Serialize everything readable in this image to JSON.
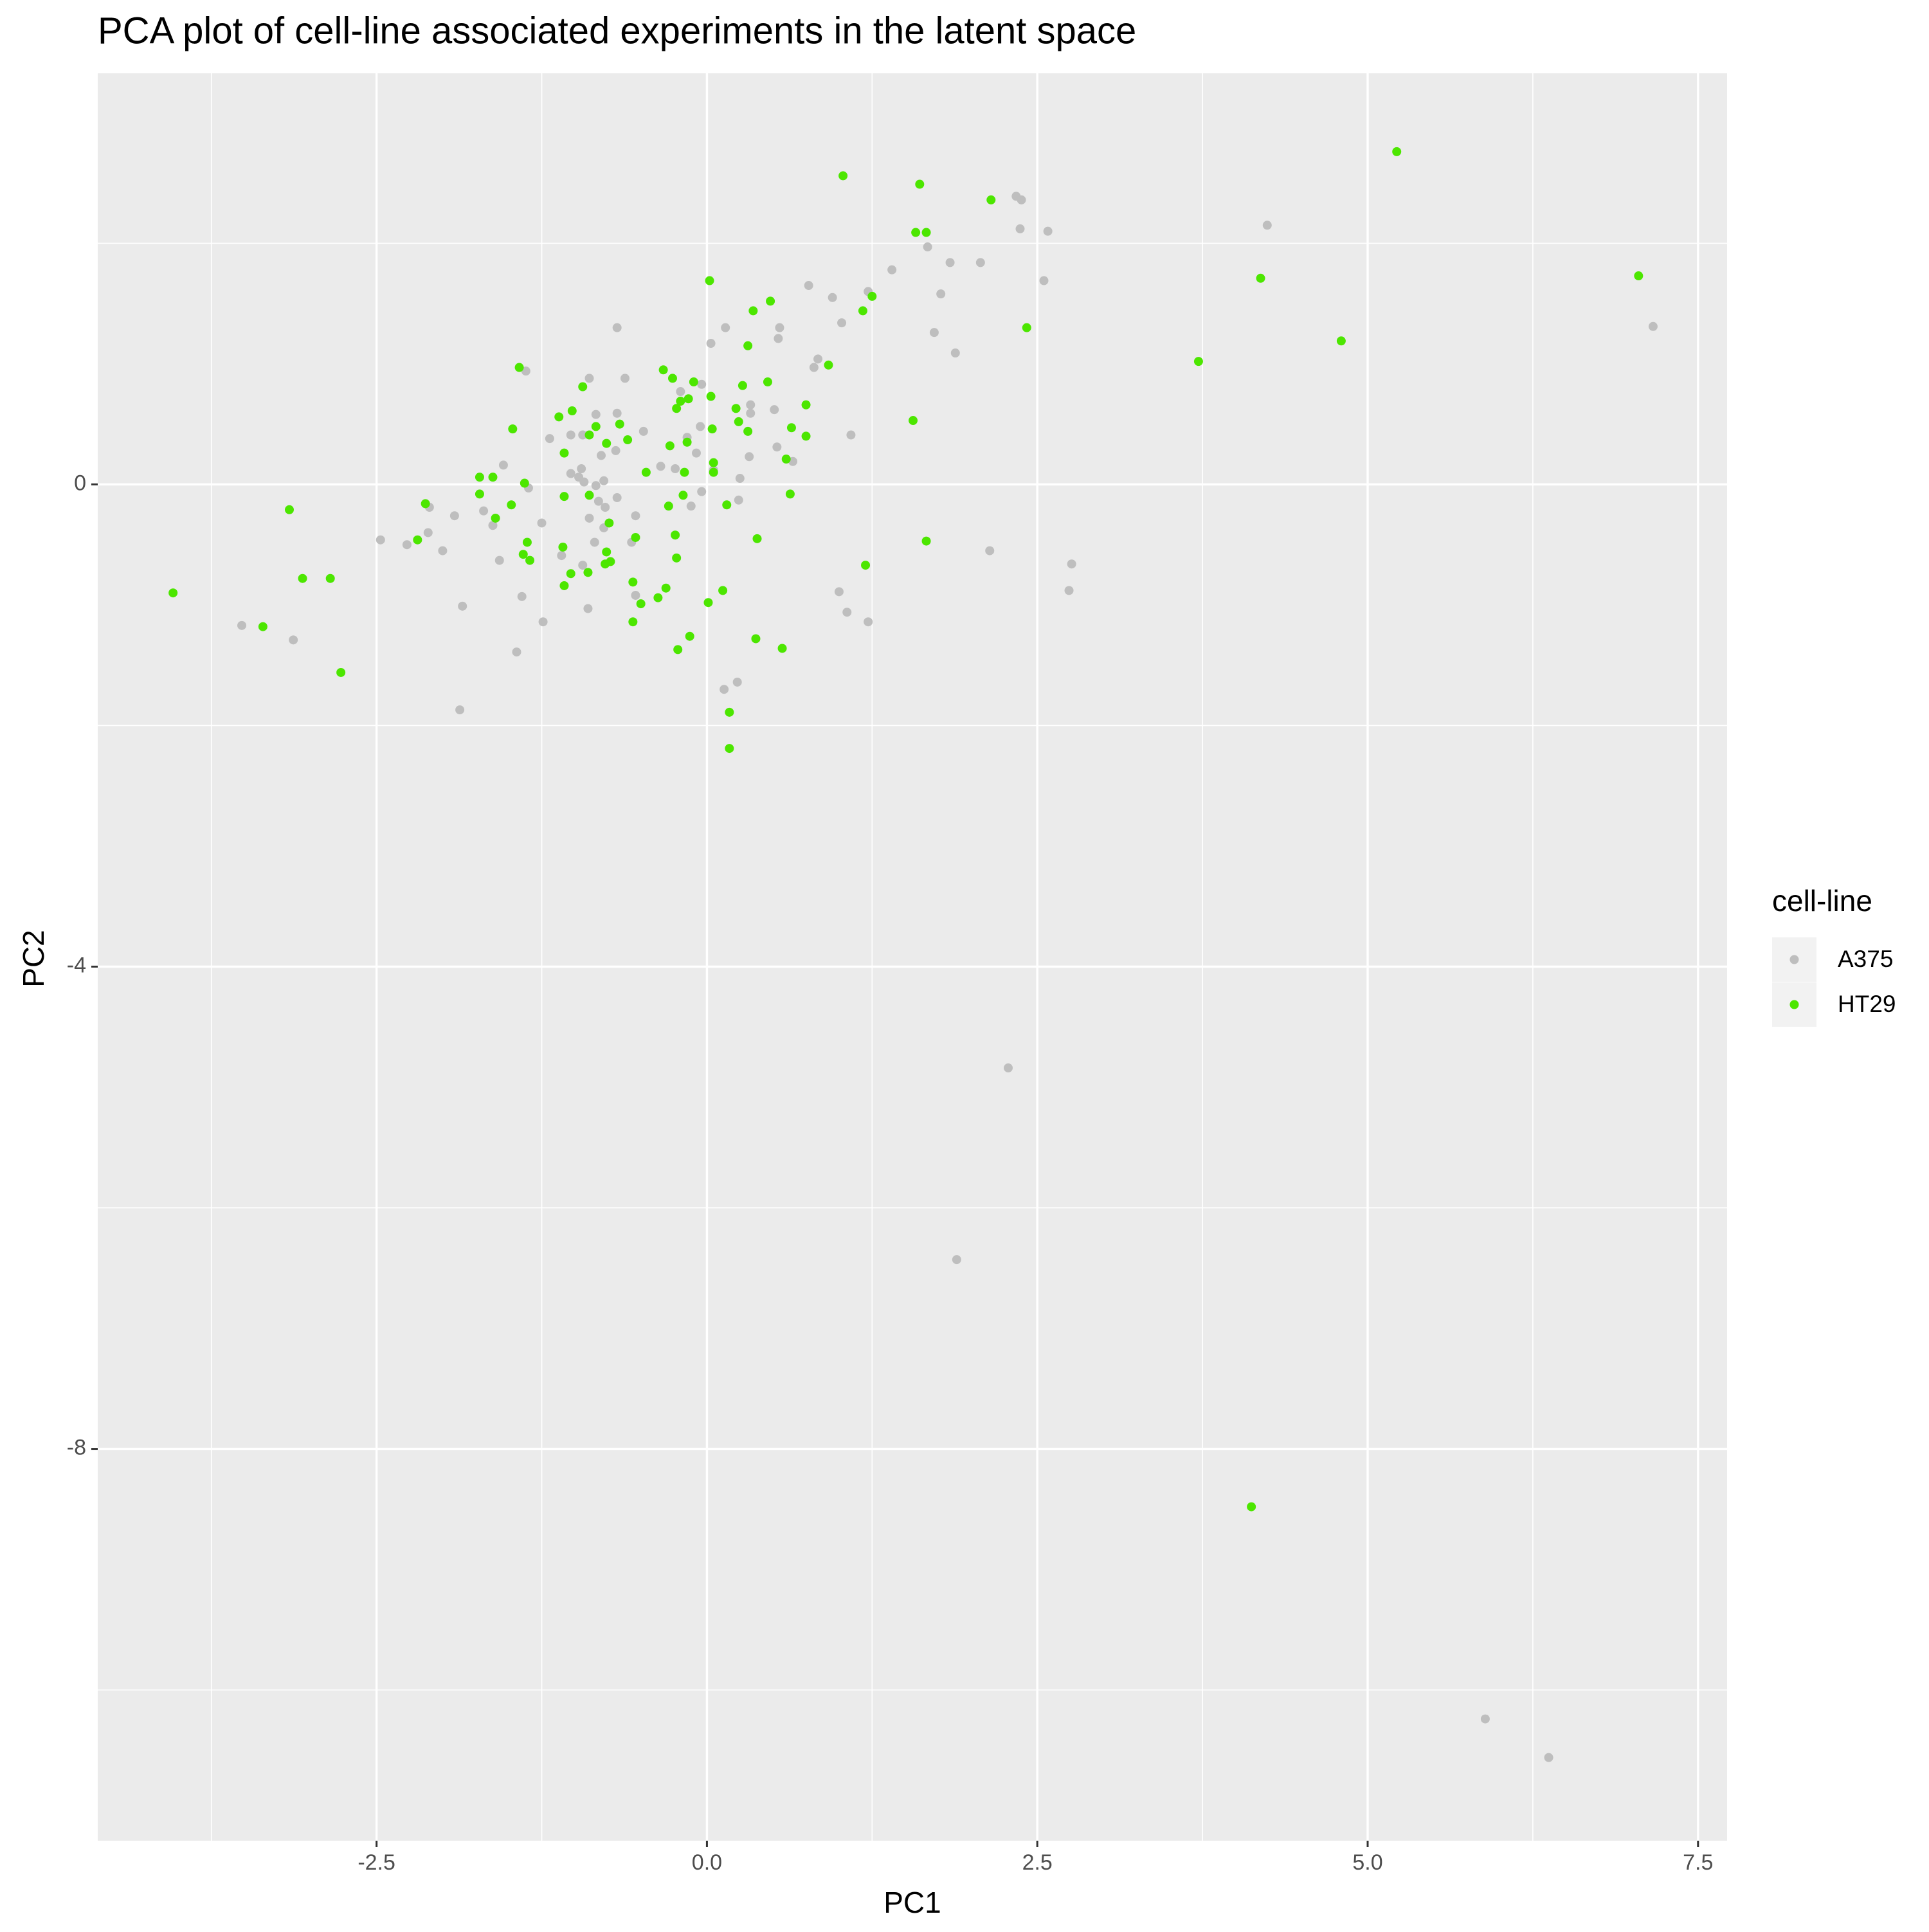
{
  "chart_data": {
    "type": "scatter",
    "title": "PCA plot of cell-line associated experiments in the latent space",
    "x_label": "PC1",
    "y_label": "PC2",
    "legend_title": "cell-line",
    "legend_position": "right",
    "grid": true,
    "panel_color": "#ebebeb",
    "xlim": [
      -4.61,
      7.72
    ],
    "ylim": [
      -11.25,
      3.41
    ],
    "xticks": [
      -2.5,
      {
        "value": 0,
        "label": "0.0"
      },
      2.5,
      {
        "value": 5,
        "label": "5.0"
      },
      7.5
    ],
    "yticks": [
      -8,
      -4,
      0
    ],
    "series": [
      {
        "name": "A375",
        "color": "#bebebe",
        "x": [
          2.34,
          2.38,
          2.37,
          2.58,
          4.24,
          1.67,
          1.84,
          2.07,
          1.4,
          2.55,
          0.77,
          1.77,
          0.95,
          1.22,
          1.02,
          7.16,
          -0.68,
          0.14,
          0.55,
          1.72,
          0.03,
          0.54,
          1.88,
          0.84,
          0.81,
          -1.37,
          -0.89,
          -0.62,
          -0.04,
          -0.2,
          -0.68,
          -0.84,
          0.33,
          0.51,
          0.33,
          -0.05,
          -0.48,
          -0.94,
          -1.03,
          -1.19,
          1.09,
          -0.15,
          0.53,
          -0.69,
          -0.8,
          0.32,
          0.65,
          -0.08,
          -0.95,
          -0.35,
          -0.24,
          -1.54,
          0.05,
          -1.03,
          -0.97,
          -0.78,
          -0.93,
          0.25,
          -0.84,
          -1.35,
          -0.04,
          -0.68,
          -0.82,
          -2.1,
          -1.69,
          -1.91,
          0.24,
          -0.12,
          -0.77,
          -0.89,
          -0.54,
          -1.25,
          -1.62,
          -0.78,
          -2.11,
          -2.47,
          -2.27,
          -2.0,
          -0.85,
          -0.57,
          2.14,
          -1.57,
          2.76,
          -0.94,
          -1.1,
          1.0,
          2.74,
          -1.4,
          -0.54,
          -1.85,
          -0.9,
          1.06,
          -3.52,
          1.22,
          -1.24,
          -3.13,
          -1.44,
          0.23,
          0.13,
          -1.87,
          2.28,
          1.89,
          5.89,
          6.37
        ],
        "values": [
          2.39,
          2.36,
          2.12,
          2.1,
          2.15,
          1.97,
          1.84,
          1.84,
          1.78,
          1.69,
          1.65,
          1.58,
          1.55,
          1.6,
          1.34,
          1.31,
          1.3,
          1.3,
          1.3,
          1.26,
          1.17,
          1.21,
          1.09,
          1.04,
          0.97,
          0.94,
          0.88,
          0.88,
          0.83,
          0.77,
          0.59,
          0.58,
          0.66,
          0.62,
          0.59,
          0.48,
          0.44,
          0.41,
          0.41,
          0.38,
          0.41,
          0.39,
          0.31,
          0.28,
          0.24,
          0.23,
          0.19,
          0.26,
          0.13,
          0.15,
          0.13,
          0.16,
          0.12,
          0.09,
          0.06,
          0.03,
          0.02,
          0.05,
          -0.01,
          -0.03,
          -0.06,
          -0.11,
          -0.14,
          -0.19,
          -0.22,
          -0.26,
          -0.13,
          -0.18,
          -0.19,
          -0.28,
          -0.26,
          -0.32,
          -0.34,
          -0.36,
          -0.4,
          -0.46,
          -0.5,
          -0.55,
          -0.48,
          -0.48,
          -0.55,
          -0.63,
          -0.66,
          -0.67,
          -0.59,
          -0.89,
          -0.88,
          -0.93,
          -0.92,
          -1.01,
          -1.03,
          -1.06,
          -1.17,
          -1.14,
          -1.14,
          -1.29,
          -1.39,
          -1.64,
          -1.7,
          -1.87,
          -4.84,
          -6.43,
          -10.24,
          -10.56
        ]
      },
      {
        "name": "HT29",
        "color": "#4ce600",
        "x": [
          1.03,
          1.61,
          5.22,
          2.15,
          1.58,
          1.66,
          0.02,
          4.19,
          7.05,
          0.48,
          0.35,
          1.25,
          1.18,
          2.42,
          0.31,
          4.8,
          3.72,
          0.92,
          -1.42,
          -0.33,
          -0.26,
          -0.1,
          0.27,
          0.46,
          -0.94,
          0.03,
          -0.14,
          -0.2,
          -0.23,
          0.22,
          0.75,
          -1.02,
          -1.12,
          1.56,
          0.24,
          -0.66,
          -0.84,
          0.64,
          -1.47,
          0.04,
          0.31,
          -0.89,
          0.75,
          -0.6,
          -0.76,
          -0.15,
          -0.28,
          -1.08,
          0.6,
          0.05,
          -0.17,
          -0.46,
          0.05,
          -1.72,
          -1.62,
          -1.38,
          -1.72,
          -1.08,
          -0.89,
          -0.18,
          0.63,
          -2.13,
          -3.16,
          -1.48,
          -0.29,
          0.15,
          -1.6,
          -0.74,
          -0.24,
          -0.54,
          -2.19,
          -1.36,
          0.38,
          1.66,
          -1.09,
          -0.76,
          -1.39,
          -0.23,
          -1.34,
          -0.73,
          -0.77,
          1.2,
          -0.9,
          -1.03,
          -3.06,
          -2.85,
          -0.56,
          -0.31,
          -1.08,
          0.12,
          -4.04,
          -0.37,
          -0.5,
          0.01,
          -0.56,
          -3.36,
          0.37,
          -0.13,
          -0.22,
          0.57,
          -2.77,
          0.17,
          0.17,
          4.12
        ],
        "values": [
          2.56,
          2.49,
          2.76,
          2.36,
          2.09,
          2.09,
          1.69,
          1.71,
          1.73,
          1.52,
          1.44,
          1.56,
          1.44,
          1.3,
          1.15,
          1.19,
          1.02,
          0.99,
          0.97,
          0.95,
          0.88,
          0.85,
          0.82,
          0.85,
          0.81,
          0.73,
          0.71,
          0.69,
          0.63,
          0.63,
          0.66,
          0.61,
          0.56,
          0.53,
          0.52,
          0.5,
          0.48,
          0.47,
          0.46,
          0.46,
          0.44,
          0.41,
          0.4,
          0.37,
          0.34,
          0.35,
          0.32,
          0.26,
          0.21,
          0.18,
          0.1,
          0.1,
          0.1,
          0.06,
          0.06,
          0.01,
          -0.08,
          -0.1,
          -0.09,
          -0.09,
          -0.08,
          -0.16,
          -0.21,
          -0.17,
          -0.18,
          -0.17,
          -0.28,
          -0.32,
          -0.42,
          -0.44,
          -0.46,
          -0.48,
          -0.45,
          -0.47,
          -0.52,
          -0.56,
          -0.58,
          -0.61,
          -0.63,
          -0.64,
          -0.66,
          -0.67,
          -0.73,
          -0.74,
          -0.78,
          -0.78,
          -0.81,
          -0.86,
          -0.84,
          -0.88,
          -0.9,
          -0.94,
          -0.99,
          -0.98,
          -1.14,
          -1.18,
          -1.28,
          -1.26,
          -1.37,
          -1.36,
          -1.56,
          -1.89,
          -2.19,
          -8.48
        ]
      }
    ]
  }
}
